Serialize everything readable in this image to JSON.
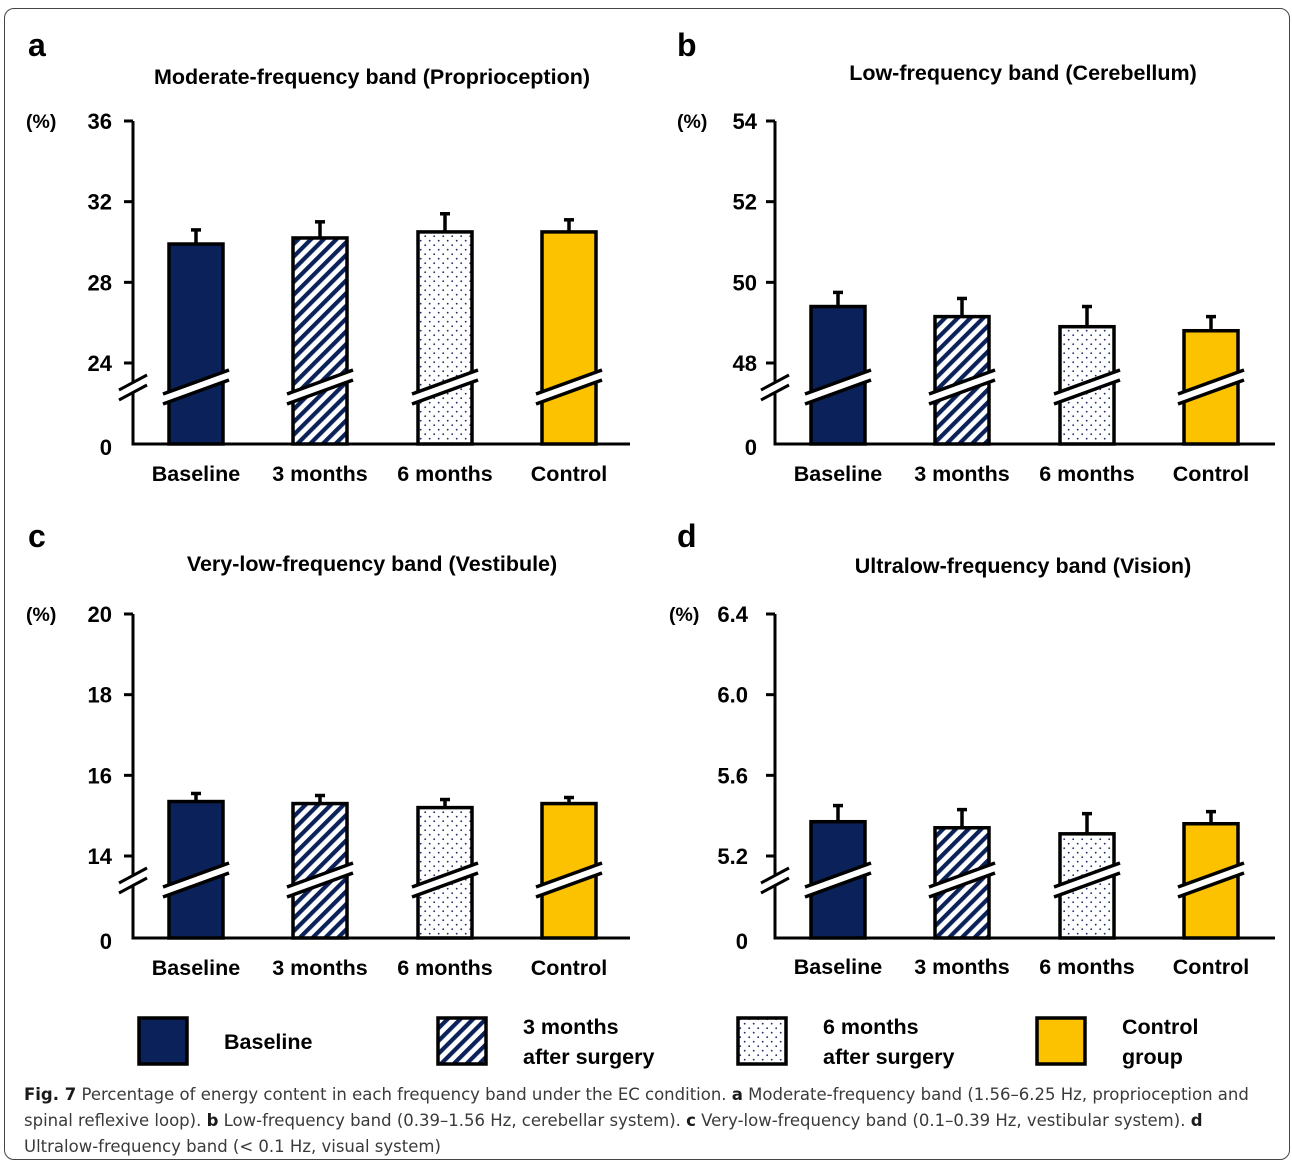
{
  "colors": {
    "baseline": "#0b2159",
    "months3_stripe": "#0b2159",
    "months6_dots": "#1c2f6a",
    "control": "#fcc200",
    "axis": "#000000"
  },
  "legend": {
    "items": [
      {
        "key": "baseline",
        "lines": [
          "Baseline"
        ]
      },
      {
        "key": "months3",
        "lines": [
          "3 months",
          "after surgery"
        ]
      },
      {
        "key": "months6",
        "lines": [
          "6 months",
          "after surgery"
        ]
      },
      {
        "key": "control",
        "lines": [
          "Control",
          "group"
        ]
      }
    ]
  },
  "caption": {
    "fig_label": "Fig. 7",
    "intro": " Percentage of energy content in each frequency band under the EC condition. ",
    "parts": [
      {
        "letter": "a",
        "text": " Moderate-frequency band (1.56–6.25 Hz, proprioception and spinal reflexive loop). "
      },
      {
        "letter": "b",
        "text": " Low-frequency band (0.39–1.56 Hz, cerebellar system). "
      },
      {
        "letter": "c",
        "text": " Very-low-frequency band (0.1–0.39 Hz, vestibular system). "
      },
      {
        "letter": "d",
        "text": " Ultralow-frequency band (< 0.1 Hz, visual system)"
      }
    ]
  },
  "chart_data": [
    {
      "type": "bar",
      "panel": "a",
      "title": "Moderate-frequency band (Proprioception)",
      "ylabel": "(%)",
      "categories": [
        "Baseline",
        "3 months",
        "6 months",
        "Control"
      ],
      "series_keys": [
        "baseline",
        "months3",
        "months6",
        "control"
      ],
      "values": [
        29.9,
        30.2,
        30.5,
        30.5
      ],
      "errors": [
        0.7,
        0.8,
        0.9,
        0.6
      ],
      "ylim": [
        24,
        36
      ],
      "yticks": [
        24,
        28,
        32,
        36
      ],
      "ytick_labels": [
        "24",
        "28",
        "32",
        "36"
      ],
      "axis_break": true,
      "break_base_label": "0"
    },
    {
      "type": "bar",
      "panel": "b",
      "title": "Low-frequency band (Cerebellum)",
      "ylabel": "(%)",
      "categories": [
        "Baseline",
        "3 months",
        "6 months",
        "Control"
      ],
      "series_keys": [
        "baseline",
        "months3",
        "months6",
        "control"
      ],
      "values": [
        49.4,
        49.15,
        48.9,
        48.8
      ],
      "errors": [
        0.35,
        0.45,
        0.5,
        0.35
      ],
      "ylim": [
        48,
        54
      ],
      "yticks": [
        48,
        50,
        52,
        54
      ],
      "ytick_labels": [
        "48",
        "50",
        "52",
        "54"
      ],
      "axis_break": true,
      "break_base_label": "0"
    },
    {
      "type": "bar",
      "panel": "c",
      "title": "Very-low-frequency band (Vestibule)",
      "ylabel": "(%)",
      "categories": [
        "Baseline",
        "3 months",
        "6 months",
        "Control"
      ],
      "series_keys": [
        "baseline",
        "months3",
        "months6",
        "control"
      ],
      "values": [
        15.35,
        15.3,
        15.2,
        15.3
      ],
      "errors": [
        0.2,
        0.2,
        0.2,
        0.15
      ],
      "ylim": [
        14,
        20
      ],
      "yticks": [
        14,
        16,
        18,
        20
      ],
      "ytick_labels": [
        "14",
        "16",
        "18",
        "20"
      ],
      "axis_break": true,
      "break_base_label": "0"
    },
    {
      "type": "bar",
      "panel": "d",
      "title": "Ultralow-frequency band (Vision)",
      "ylabel": "(%)",
      "categories": [
        "Baseline",
        "3 months",
        "6 months",
        "Control"
      ],
      "series_keys": [
        "baseline",
        "months3",
        "months6",
        "control"
      ],
      "values": [
        5.37,
        5.34,
        5.31,
        5.36
      ],
      "errors": [
        0.08,
        0.09,
        0.1,
        0.06
      ],
      "ylim": [
        5.2,
        6.4
      ],
      "yticks": [
        5.2,
        5.6,
        6.0,
        6.4
      ],
      "ytick_labels": [
        "5.2",
        "5.6",
        "6.0",
        "6.4"
      ],
      "axis_break": true,
      "break_base_label": "0"
    }
  ]
}
